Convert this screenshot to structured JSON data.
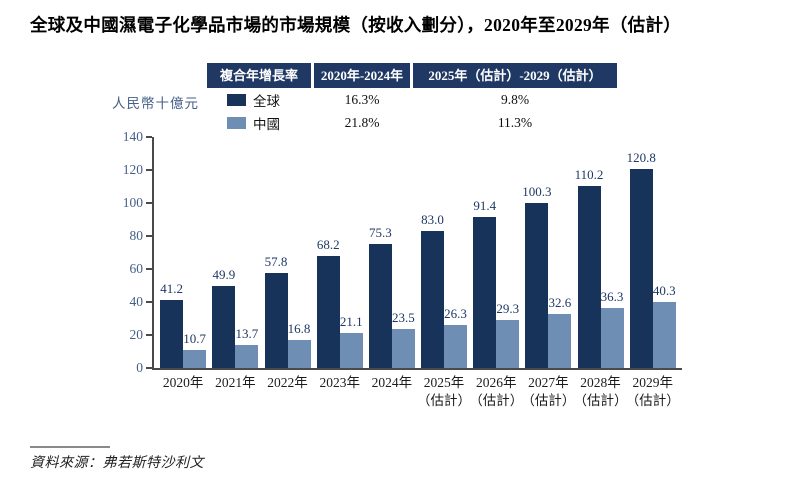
{
  "title": "全球及中國濕電子化學品市場的市場規模（按收入劃分），2020年至2029年（估計）",
  "y_axis_label": "人民幣十億元",
  "cagr_table": {
    "header_col_label": "複合年增長率",
    "header_period1": "2020年-2024年",
    "header_period2": "2025年（估計）-2029（估計）",
    "rows": [
      {
        "label": "全球",
        "period1": "16.3%",
        "period2": "9.8%"
      },
      {
        "label": "中國",
        "period1": "21.8%",
        "period2": "11.3%"
      }
    ]
  },
  "source_note": "資料來源：弗若斯特沙利文",
  "colors": {
    "global_series": "#17335a",
    "china_series": "#6e8eb4",
    "table_header_bg": "#1f3864",
    "axis_text": "#455f87",
    "value_label": "#1f3864"
  },
  "chart_data": {
    "type": "bar",
    "title": "全球及中國濕電子化學品市場的市場規模（按收入劃分），2020年至2029年（估計）",
    "categories": [
      "2020年",
      "2021年",
      "2022年",
      "2023年",
      "2024年",
      "2025年",
      "2026年",
      "2027年",
      "2028年",
      "2029年"
    ],
    "estimate_suffix": "（估計）",
    "estimate_from_index": 5,
    "series": [
      {
        "name": "全球",
        "color": "#17335a",
        "values": [
          41.2,
          49.9,
          57.8,
          68.2,
          75.3,
          83.0,
          91.4,
          100.3,
          110.2,
          120.8
        ]
      },
      {
        "name": "中國",
        "color": "#6e8eb4",
        "values": [
          10.7,
          13.7,
          16.8,
          21.1,
          23.5,
          26.3,
          29.3,
          32.6,
          36.3,
          40.3
        ]
      }
    ],
    "cagr": {
      "columns": [
        "2020年-2024年",
        "2025年（估計）-2029（估計）"
      ],
      "全球": [
        "16.3%",
        "9.8%"
      ],
      "中國": [
        "21.8%",
        "11.3%"
      ]
    },
    "xlabel": "",
    "ylabel": "人民幣十億元",
    "ylim": [
      0,
      140
    ],
    "ytick_step": 20,
    "grid": false,
    "legend_position": "top-left"
  }
}
